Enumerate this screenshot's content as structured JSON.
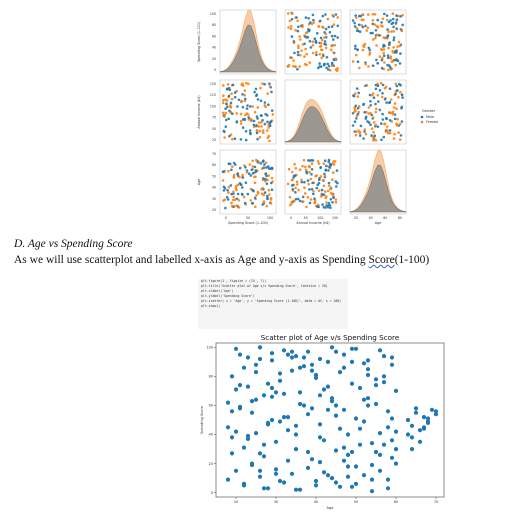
{
  "pairplot": {
    "variables": [
      "Spending Score (1-100)",
      "Annual Income (k$)",
      "Age"
    ],
    "legend": {
      "title": "Gender",
      "entries": [
        {
          "label": "Male",
          "color": "#1f77b4"
        },
        {
          "label": "Female",
          "color": "#ff7f0e"
        }
      ]
    },
    "tick_labels": {
      "spend_y": [
        "100",
        "80",
        "60",
        "40",
        "20",
        "0"
      ],
      "income_y": [
        "150",
        "125",
        "100",
        "75",
        "50",
        "25"
      ],
      "age_y": [
        "70",
        "60",
        "50",
        "40",
        "30",
        "20"
      ],
      "spend_x": [
        "0",
        "50",
        "100"
      ],
      "income_x": [
        "0",
        "50",
        "100",
        "150"
      ],
      "age_x": [
        "20",
        "40",
        "60",
        "80"
      ]
    },
    "colors": {
      "male": "#1f77b4",
      "female": "#ff7f0e",
      "kde_female": "#f8c49b",
      "kde_male": "#8e8e8e"
    }
  },
  "document": {
    "heading": "D.   Age vs Spending Score",
    "body_prefix": "As we will use scatterplot and labelled x-axis as Age and y-axis as Spending ",
    "body_misspelled": "Score",
    "body_suffix": "(1-100)"
  },
  "code_cell": {
    "lines": [
      "plt.figure(1 , figsize = (15 , 7))",
      "plt.title('Scatter plot of Age v/s Spending Score', fontsize = 20)",
      "plt.xlabel('Age')",
      "plt.ylabel('Spending Score')",
      "plt.scatter( x = 'Age', y = 'Spending Score (1-100)', data = df, s = 100)",
      "plt.show()"
    ]
  },
  "chart_data": {
    "type": "scatter",
    "title": "Scatter plot of Age v/s Spending Score",
    "xlabel": "Age",
    "ylabel": "Spending Score",
    "xlim": [
      15,
      72
    ],
    "ylim": [
      -3,
      103
    ],
    "xticks": [
      20,
      30,
      40,
      50,
      60,
      70
    ],
    "yticks": [
      0,
      20,
      40,
      60,
      80,
      100
    ],
    "point_color": "#1f77b4",
    "series": [
      {
        "x": [
          18,
          19,
          20,
          21,
          22,
          23,
          24,
          25,
          26,
          27,
          28,
          29,
          30,
          31,
          32,
          33,
          34,
          35,
          36,
          37,
          38,
          39,
          40,
          41,
          42,
          43,
          44,
          45,
          46,
          47,
          48,
          49,
          50,
          51,
          52,
          53,
          54,
          55,
          56,
          57,
          58,
          59,
          60,
          18,
          19,
          20,
          21,
          22,
          23,
          24,
          25,
          26,
          27,
          28,
          29,
          30,
          31,
          32,
          33,
          34,
          35,
          36,
          37,
          38,
          39,
          40,
          41,
          42,
          43,
          44,
          45,
          46,
          47,
          48,
          49,
          50,
          51,
          52,
          53,
          54,
          55,
          56,
          57,
          58,
          59,
          60,
          18,
          20,
          22,
          24,
          26,
          28,
          30,
          32,
          34,
          36,
          38,
          40,
          42,
          44,
          46,
          48,
          50,
          52,
          54,
          56,
          58,
          60,
          19,
          21,
          23,
          25,
          27,
          29,
          31,
          33,
          35,
          37,
          39,
          41,
          43,
          45,
          47,
          49,
          51,
          53,
          55,
          57,
          59,
          20,
          23,
          26,
          29,
          32,
          35,
          38,
          41,
          44,
          47,
          50,
          53,
          56,
          59,
          22,
          27,
          31,
          35,
          40,
          45,
          49,
          54,
          58,
          63,
          64,
          65,
          66,
          67,
          68,
          69,
          70,
          63,
          65,
          67,
          68,
          70,
          19,
          24,
          29,
          36,
          43,
          49,
          55,
          60,
          21,
          28,
          34,
          41,
          47,
          53,
          59,
          25,
          33,
          45,
          57,
          26,
          30,
          39,
          48,
          52,
          64,
          66,
          68,
          64,
          67
        ],
        "y": [
          62,
          80,
          42,
          95,
          31,
          73,
          55,
          88,
          15,
          67,
          48,
          91,
          35,
          77,
          52,
          22,
          84,
          46,
          69,
          93,
          28,
          58,
          81,
          38,
          71,
          12,
          63,
          97,
          44,
          86,
          26,
          75,
          51,
          33,
          89,
          60,
          19,
          78,
          41,
          94,
          56,
          24,
          70,
          45,
          27,
          71,
          58,
          86,
          39,
          20,
          64,
          92,
          33,
          75,
          50,
          13,
          82,
          68,
          43,
          97,
          30,
          61,
          87,
          54,
          23,
          79,
          47,
          36,
          90,
          65,
          29,
          83,
          57,
          40,
          99,
          18,
          72,
          49,
          85,
          34,
          61,
          26,
          76,
          45,
          88,
          30,
          9,
          15,
          5,
          19,
          11,
          3,
          16,
          7,
          13,
          2,
          17,
          8,
          14,
          10,
          4,
          18,
          6,
          12,
          1,
          15,
          9,
          20,
          56,
          74,
          37,
          83,
          25,
          66,
          49,
          95,
          40,
          60,
          84,
          21,
          73,
          53,
          31,
          90,
          44,
          65,
          28,
          80,
          51,
          99,
          93,
          100,
          96,
          98,
          94,
          97,
          92,
          100,
          95,
          99,
          91,
          98,
          93,
          6,
          3,
          8,
          2,
          5,
          7,
          4,
          9,
          3,
          50,
          46,
          55,
          43,
          52,
          48,
          57,
          54,
          40,
          58,
          45,
          51,
          56,
          38,
          63,
          72,
          86,
          57,
          28,
          74,
          42,
          59,
          47,
          93,
          67,
          22,
          81,
          36,
          41,
          52,
          60,
          33,
          27,
          69,
          88,
          11,
          64,
          38,
          35,
          49,
          30,
          44
        ]
      }
    ]
  }
}
